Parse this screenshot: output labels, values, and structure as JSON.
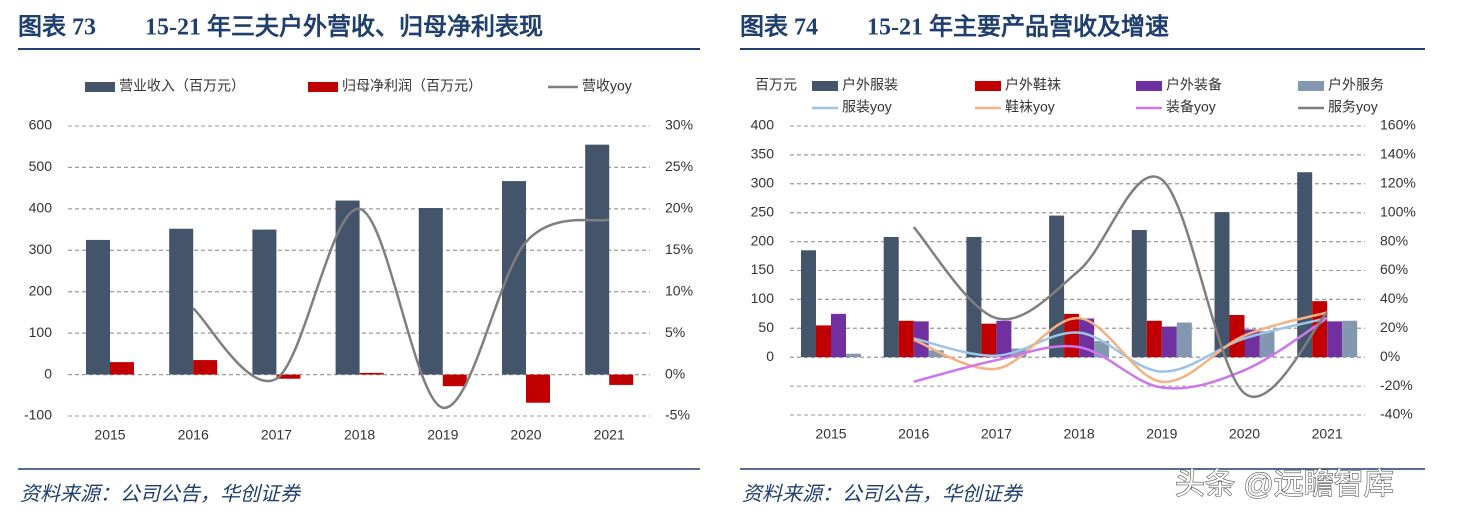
{
  "chart_data": [
    {
      "type": "bar",
      "figure_no": "图表 73",
      "title": "15-21 年三夫户外营收、归母净利表现",
      "source": "资料来源：公司公告，华创证券",
      "categories": [
        "2015",
        "2016",
        "2017",
        "2018",
        "2019",
        "2020",
        "2021"
      ],
      "series": [
        {
          "name": "营业收入（百万元）",
          "color": "#44546a",
          "values": [
            325,
            352,
            350,
            420,
            402,
            467,
            555
          ]
        },
        {
          "name": "归母净利润（百万元）",
          "color": "#c00000",
          "values": [
            30,
            35,
            -10,
            4,
            -28,
            -68,
            -25
          ]
        },
        {
          "name": "营收yoy",
          "color": "#7f7f7f",
          "axis": "y2",
          "type": "line",
          "values": [
            null,
            8,
            -0.5,
            20,
            -4,
            16,
            18.7
          ]
        }
      ],
      "ylim": [
        -100,
        600
      ],
      "yticks": [
        -100,
        0,
        100,
        200,
        300,
        400,
        500,
        600
      ],
      "y2lim": [
        -5,
        30
      ],
      "y2ticks": [
        {
          "value": -5,
          "label": "-5%"
        },
        {
          "value": 0,
          "label": "0%"
        },
        {
          "value": 5,
          "label": "5%"
        },
        {
          "value": 10,
          "label": "10%"
        },
        {
          "value": 15,
          "label": "15%"
        },
        {
          "value": 20,
          "label": "20%"
        },
        {
          "value": 25,
          "label": "25%"
        },
        {
          "value": 30,
          "label": "30%"
        }
      ],
      "grid": true
    },
    {
      "type": "bar",
      "figure_no": "图表 74",
      "title": "15-21 年主要产品营收及增速",
      "source": "资料来源：公司公告，华创证券",
      "y_unit": "百万元",
      "categories": [
        "2015",
        "2016",
        "2017",
        "2018",
        "2019",
        "2020",
        "2021"
      ],
      "series": [
        {
          "name": "户外服装",
          "color": "#44546a",
          "values": [
            185,
            208,
            208,
            245,
            220,
            251,
            320
          ]
        },
        {
          "name": "户外鞋袜",
          "color": "#c00000",
          "values": [
            55,
            63,
            58,
            75,
            63,
            73,
            97
          ]
        },
        {
          "name": "户外装备",
          "color": "#7030a0",
          "values": [
            75,
            62,
            63,
            67,
            53,
            48,
            62
          ]
        },
        {
          "name": "户外服务",
          "color": "#8497b0",
          "values": [
            6,
            12,
            15,
            28,
            60,
            45,
            63
          ]
        },
        {
          "name": "服装yoy",
          "color": "#9dc3e6",
          "axis": "y2",
          "type": "line",
          "values": [
            null,
            13,
            1,
            17,
            -10,
            13,
            27
          ]
        },
        {
          "name": "鞋袜yoy",
          "color": "#f4b183",
          "axis": "y2",
          "type": "line",
          "values": [
            null,
            12,
            -8,
            27,
            -17,
            15,
            31
          ]
        },
        {
          "name": "装备yoy",
          "color": "#cc77ee",
          "axis": "y2",
          "type": "line",
          "values": [
            null,
            -17,
            -2,
            7,
            -21,
            -9,
            27
          ]
        },
        {
          "name": "服务yoy",
          "color": "#7f7f7f",
          "axis": "y2",
          "type": "line",
          "values": [
            null,
            90,
            27,
            60,
            123,
            -25,
            31
          ]
        }
      ],
      "ylim": [
        -100,
        400
      ],
      "yticks": [
        0,
        50,
        100,
        150,
        200,
        250,
        300,
        350,
        400
      ],
      "y2lim": [
        -40,
        160
      ],
      "y2ticks": [
        {
          "value": -40,
          "label": "-40%"
        },
        {
          "value": -20,
          "label": "-20%"
        },
        {
          "value": 0,
          "label": "0%"
        },
        {
          "value": 20,
          "label": "20%"
        },
        {
          "value": 40,
          "label": "40%"
        },
        {
          "value": 60,
          "label": "60%"
        },
        {
          "value": 80,
          "label": "80%"
        },
        {
          "value": 100,
          "label": "100%"
        },
        {
          "value": 120,
          "label": "120%"
        },
        {
          "value": 140,
          "label": "140%"
        },
        {
          "value": 160,
          "label": "160%"
        }
      ],
      "grid": true
    }
  ],
  "watermark": "头条 @远瞻智库"
}
